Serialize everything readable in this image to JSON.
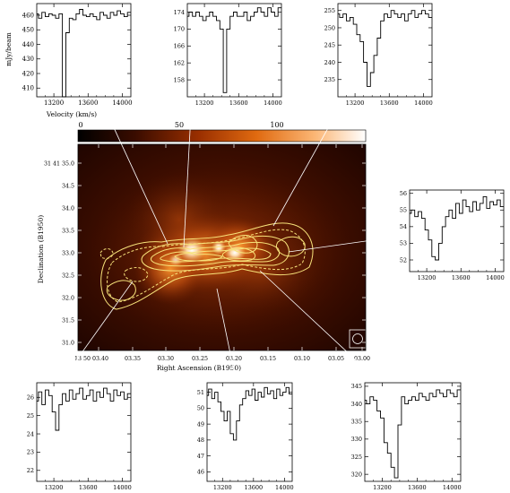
{
  "chart_data": [
    {
      "type": "line",
      "panel": "top-left",
      "xlabel": "Velocity (km/s)",
      "ylabel": "mJy/beam",
      "xticks": [
        13200,
        13600,
        14000
      ],
      "xlim": [
        13000,
        14100
      ],
      "yticks": [
        410,
        420,
        430,
        440,
        450,
        460
      ],
      "ylim": [
        404,
        468
      ],
      "x": [
        13000,
        13040,
        13080,
        13120,
        13160,
        13200,
        13240,
        13280,
        13320,
        13360,
        13400,
        13440,
        13480,
        13520,
        13560,
        13600,
        13640,
        13680,
        13720,
        13760,
        13800,
        13840,
        13880,
        13920,
        13960,
        14000,
        14040,
        14080
      ],
      "values": [
        461,
        458,
        462,
        459,
        461,
        460,
        458,
        461,
        404,
        448,
        458,
        457,
        461,
        464,
        460,
        459,
        461,
        459,
        457,
        462,
        460,
        458,
        462,
        460,
        463,
        461,
        459,
        462
      ]
    },
    {
      "type": "line",
      "panel": "top-center",
      "xticks": [
        13200,
        13600,
        14000
      ],
      "xlim": [
        13000,
        14100
      ],
      "yticks": [
        158,
        162,
        166,
        170,
        174
      ],
      "ylim": [
        154,
        176
      ],
      "x": [
        13000,
        13040,
        13080,
        13120,
        13160,
        13200,
        13240,
        13280,
        13320,
        13360,
        13400,
        13440,
        13480,
        13520,
        13560,
        13600,
        13640,
        13680,
        13720,
        13760,
        13800,
        13840,
        13880,
        13920,
        13960,
        14000,
        14040,
        14080
      ],
      "values": [
        173,
        174,
        173,
        174,
        173,
        172,
        173,
        174,
        173,
        172,
        170,
        155,
        170,
        173,
        174,
        173,
        173,
        174,
        172,
        173,
        174,
        175,
        174,
        173,
        175,
        174,
        173,
        175
      ]
    },
    {
      "type": "line",
      "panel": "top-right",
      "xticks": [
        13200,
        13600,
        14000
      ],
      "xlim": [
        13000,
        14100
      ],
      "yticks": [
        235,
        240,
        245,
        250,
        255
      ],
      "ylim": [
        230,
        257
      ],
      "x": [
        13000,
        13040,
        13080,
        13120,
        13160,
        13200,
        13240,
        13280,
        13320,
        13360,
        13400,
        13440,
        13480,
        13520,
        13560,
        13600,
        13640,
        13680,
        13720,
        13760,
        13800,
        13840,
        13880,
        13920,
        13960,
        14000,
        14040,
        14080
      ],
      "values": [
        254,
        253,
        254,
        252,
        253,
        251,
        248,
        246,
        240,
        233,
        237,
        242,
        247,
        252,
        254,
        253,
        255,
        254,
        253,
        254,
        252,
        254,
        255,
        253,
        254,
        255,
        254,
        253
      ]
    },
    {
      "type": "line",
      "panel": "middle-right",
      "xticks": [
        13200,
        13600,
        14000
      ],
      "xlim": [
        13000,
        14100
      ],
      "yticks": [
        52,
        53,
        54,
        55,
        56
      ],
      "ylim": [
        51.3,
        56.2
      ],
      "x": [
        13000,
        13040,
        13080,
        13120,
        13160,
        13200,
        13240,
        13280,
        13320,
        13360,
        13400,
        13440,
        13480,
        13520,
        13560,
        13600,
        13640,
        13680,
        13720,
        13760,
        13800,
        13840,
        13880,
        13920,
        13960,
        14000,
        14040,
        14080
      ],
      "values": [
        54.8,
        55.0,
        54.6,
        54.9,
        54.5,
        53.8,
        53.2,
        52.2,
        52.0,
        53.0,
        54.0,
        54.6,
        55.0,
        54.5,
        55.4,
        54.8,
        55.6,
        55.2,
        54.9,
        55.5,
        55.0,
        55.4,
        55.8,
        55.1,
        55.5,
        55.3,
        55.6,
        55.2
      ]
    },
    {
      "type": "line",
      "panel": "bottom-left",
      "xticks": [
        13200,
        13600,
        14000
      ],
      "xlim": [
        13000,
        14100
      ],
      "yticks": [
        22,
        23,
        24,
        25,
        26
      ],
      "ylim": [
        21.4,
        26.8
      ],
      "x": [
        13000,
        13040,
        13080,
        13120,
        13160,
        13200,
        13240,
        13280,
        13320,
        13360,
        13400,
        13440,
        13480,
        13520,
        13560,
        13600,
        13640,
        13680,
        13720,
        13760,
        13800,
        13840,
        13880,
        13920,
        13960,
        14000,
        14040,
        14080
      ],
      "values": [
        25.8,
        26.3,
        25.6,
        26.4,
        26.1,
        25.2,
        24.2,
        25.6,
        26.2,
        25.8,
        26.4,
        25.9,
        26.2,
        26.5,
        25.9,
        26.1,
        26.4,
        25.8,
        26.3,
        26.0,
        26.5,
        26.2,
        25.8,
        26.4,
        26.1,
        26.3,
        25.9,
        26.2
      ]
    },
    {
      "type": "line",
      "panel": "bottom-center",
      "xticks": [
        13200,
        13600,
        14000
      ],
      "xlim": [
        13000,
        14100
      ],
      "yticks": [
        46,
        47,
        48,
        49,
        50,
        51
      ],
      "ylim": [
        45.4,
        51.6
      ],
      "x": [
        13000,
        13040,
        13080,
        13120,
        13160,
        13200,
        13240,
        13280,
        13320,
        13360,
        13400,
        13440,
        13480,
        13520,
        13560,
        13600,
        13640,
        13680,
        13720,
        13760,
        13800,
        13840,
        13880,
        13920,
        13960,
        14000,
        14040,
        14080
      ],
      "values": [
        50.8,
        51.2,
        50.6,
        51.0,
        50.4,
        49.8,
        49.2,
        49.8,
        48.4,
        48.0,
        49.2,
        50.2,
        50.6,
        51.1,
        50.8,
        51.2,
        50.5,
        51.0,
        50.7,
        51.3,
        50.9,
        51.1,
        50.6,
        51.2,
        50.8,
        51.0,
        51.3,
        50.9
      ]
    },
    {
      "type": "line",
      "panel": "bottom-right",
      "xticks": [
        13200,
        13600,
        14000
      ],
      "xlim": [
        13000,
        14100
      ],
      "yticks": [
        320,
        325,
        330,
        335,
        340,
        345
      ],
      "ylim": [
        318,
        346
      ],
      "x": [
        13000,
        13040,
        13080,
        13120,
        13160,
        13200,
        13240,
        13280,
        13320,
        13360,
        13400,
        13440,
        13480,
        13520,
        13560,
        13600,
        13640,
        13680,
        13720,
        13760,
        13800,
        13840,
        13880,
        13920,
        13960,
        14000,
        14040,
        14080
      ],
      "values": [
        341,
        340,
        342,
        341,
        338,
        336,
        329,
        326,
        322,
        319,
        334,
        342,
        340,
        341,
        342,
        341,
        343,
        342,
        341,
        343,
        342,
        344,
        343,
        342,
        344,
        343,
        342,
        344
      ]
    },
    {
      "type": "heatmap",
      "panel": "center",
      "colorbar_ticks": [
        "0",
        "50",
        "100"
      ],
      "colorbar_range": [
        0,
        125
      ],
      "xlabel": "Right Ascension (B1950)",
      "ylabel": "Declination (B1950)",
      "xtick_labels": [
        "13 50 03.40",
        "03.35",
        "03.30",
        "03.25",
        "03.20",
        "03.15",
        "03.10",
        "03.05",
        "03.00"
      ],
      "ytick_labels": [
        "31 41 35.0",
        "34.5",
        "34.0",
        "33.5",
        "33.0",
        "32.5",
        "32.0",
        "31.5",
        "31.0"
      ]
    }
  ],
  "colors": {
    "contour": "#f7e27a",
    "frame": "#000000",
    "pointer_line": "#ffffff"
  }
}
